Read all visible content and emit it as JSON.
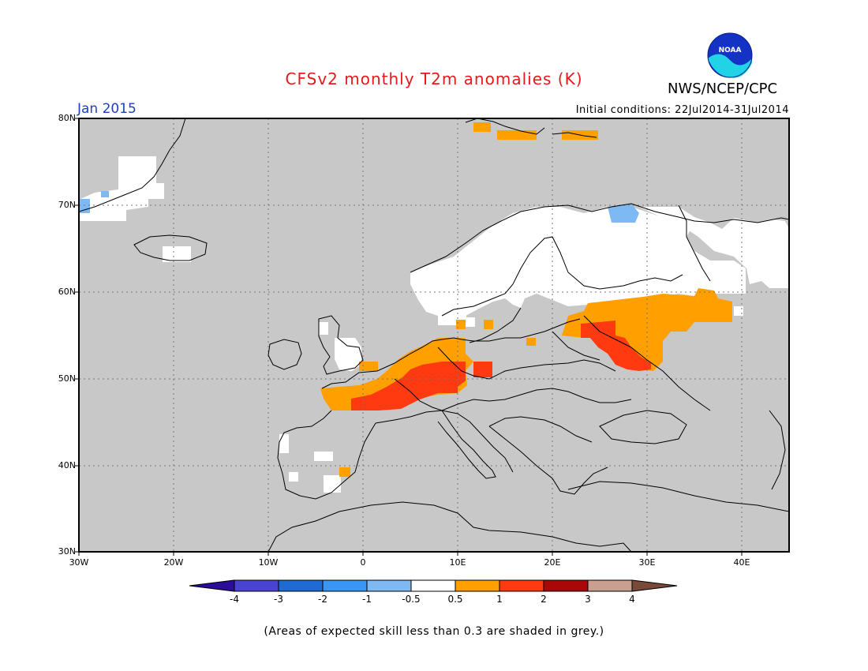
{
  "title": "CFSv2 monthly T2m anomalies (K)",
  "agency": "NWS/NCEP/CPC",
  "logo_text": "NOAA",
  "month": "Jan 2015",
  "initial_conditions": "Initial conditions: 22Jul2014-31Jul2014",
  "lat_labels": [
    "80N",
    "70N",
    "60N",
    "50N",
    "40N",
    "30N"
  ],
  "lon_labels": [
    "30W",
    "20W",
    "10W",
    "0",
    "10E",
    "20E",
    "30E",
    "40E"
  ],
  "colorbar": {
    "labels": [
      "-4",
      "-3",
      "-2",
      "-1",
      "-0.5",
      "0.5",
      "1",
      "2",
      "3",
      "4"
    ],
    "colors": [
      "#2c0c9a",
      "#4a43d1",
      "#1f6bd3",
      "#3b95f2",
      "#7fb9f4",
      "#ffffff",
      "#ff9f00",
      "#ff3a10",
      "#a80808",
      "#c9a090",
      "#7a4a38"
    ]
  },
  "note": "(Areas of expected skill less than 0.3 are shaded in grey.)",
  "colors": {
    "grey_low_skill": "#c8c8c8",
    "near_normal": "#ffffff",
    "warm_0p5_1": "#ff9f00",
    "warm_1_2": "#ff3a10",
    "cold_0p5_1": "#7fb9f4"
  }
}
